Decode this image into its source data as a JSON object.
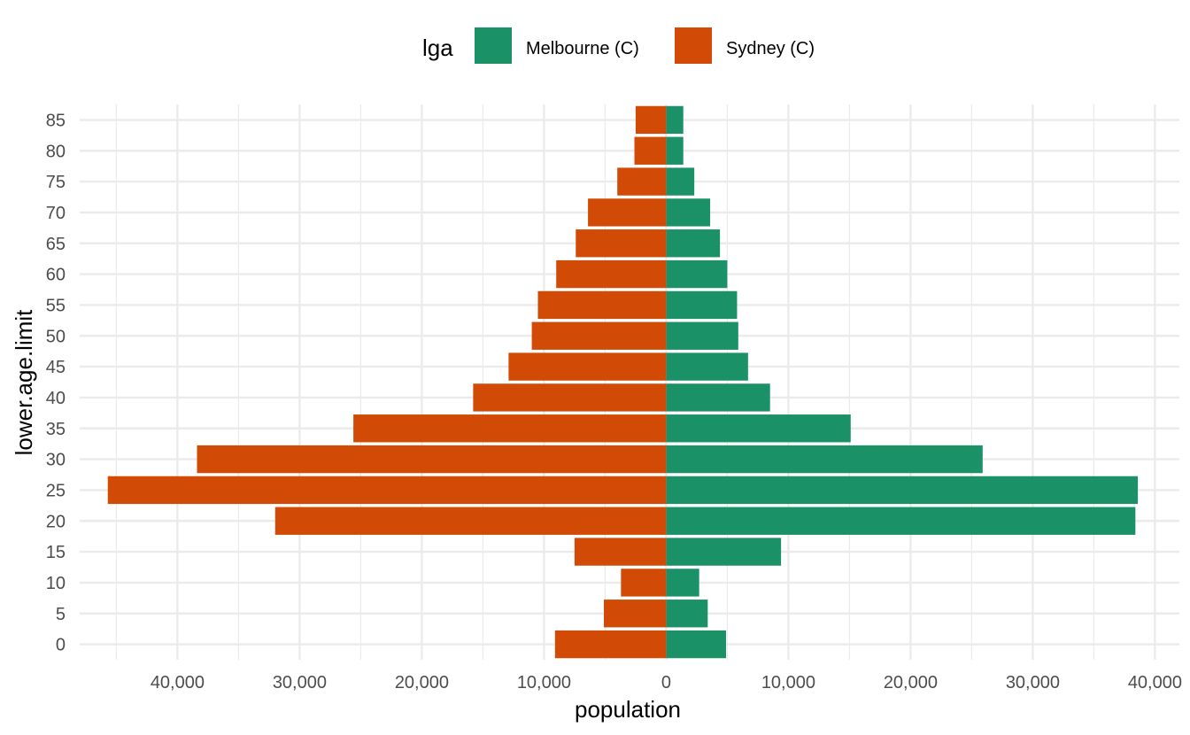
{
  "chart_data": {
    "type": "bar",
    "orientation": "horizontal",
    "layout": "population-pyramid",
    "legend": {
      "title": "lga",
      "position": "top",
      "entries": [
        {
          "name": "Melbourne (C)",
          "color": "#1b9168"
        },
        {
          "name": "Sydney (C)",
          "color": "#d14b07"
        }
      ]
    },
    "xlabel": "population",
    "ylabel": "lower.age.limit",
    "categories": [
      "0",
      "5",
      "10",
      "15",
      "20",
      "25",
      "30",
      "35",
      "40",
      "45",
      "50",
      "55",
      "60",
      "65",
      "70",
      "75",
      "80",
      "85"
    ],
    "series": [
      {
        "name": "Melbourne (C)",
        "color": "#1b9168",
        "side": "right",
        "values": [
          4900,
          3400,
          2700,
          9400,
          38400,
          38600,
          25900,
          15100,
          8500,
          6700,
          5900,
          5800,
          5000,
          4400,
          3600,
          2300,
          1400,
          1400
        ]
      },
      {
        "name": "Sydney (C)",
        "color": "#d14b07",
        "side": "left",
        "values": [
          9100,
          5100,
          3700,
          7500,
          32000,
          45700,
          38400,
          25600,
          15800,
          12900,
          11000,
          10500,
          9000,
          7400,
          6400,
          4000,
          2600,
          2500
        ]
      }
    ],
    "xlim": [
      -48000,
      42000
    ],
    "x_ticks": [
      -40000,
      -30000,
      -20000,
      -10000,
      0,
      10000,
      20000,
      30000,
      40000
    ],
    "x_tick_labels": [
      "40,000",
      "30,000",
      "20,000",
      "10,000",
      "0",
      "10,000",
      "20,000",
      "30,000",
      "40,000"
    ],
    "grid": true
  }
}
